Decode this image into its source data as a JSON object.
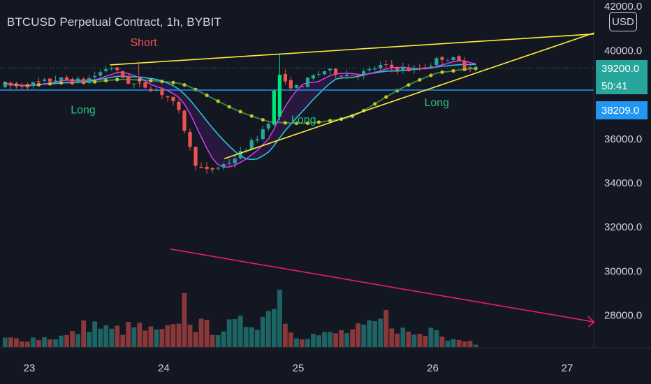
{
  "header": {
    "title": "BTCUSD Perpetual Contract, 1h, BYBIT"
  },
  "scale_button": {
    "label": "USD"
  },
  "price_badges": {
    "last_price": "39200.0",
    "countdown": "50:41",
    "line_price": "38209.0"
  },
  "colors": {
    "background": "#131722",
    "bull": "#26a69a",
    "bear": "#ef5350",
    "bull_bright": "#00e676",
    "trend_line": "#ffeb3b",
    "horizontal_line": "#2196f3",
    "volume_trend": "#e91e63",
    "ma_slow": "#c6c62a",
    "ma_teal": "#26c6da",
    "ma_pink": "#e040fb"
  },
  "chart_data": {
    "type": "candlestick",
    "timeframe": "1h",
    "x_ticks": [
      "23",
      "24",
      "25",
      "26",
      "27"
    ],
    "y_ticks": [
      "42000.0",
      "40000.0",
      "36000.0",
      "34000.0",
      "32000.0",
      "30000.0",
      "28000.0"
    ],
    "ylim": [
      26500,
      42000
    ],
    "horizontal_line_price": 38209,
    "last_price": 39200,
    "signals": [
      {
        "label": "Long",
        "kind": "long",
        "day": 23.4,
        "price": 37150
      },
      {
        "label": "Short",
        "kind": "short",
        "day": 23.85,
        "price": 40200
      },
      {
        "label": "Long",
        "kind": "long",
        "day": 25.04,
        "price": 36700
      },
      {
        "label": "Long",
        "kind": "long",
        "day": 26.03,
        "price": 37480
      }
    ],
    "trend_lines": [
      {
        "from": [
          23.6,
          39350
        ],
        "to": [
          27.2,
          40750
        ]
      },
      {
        "from": [
          24.45,
          35100
        ],
        "to": [
          27.2,
          40800
        ]
      }
    ],
    "volume_trend_line": {
      "from": [
        24.05,
        31000
      ],
      "to": [
        27.2,
        27700
      ]
    },
    "anchors": {
      "close": [
        [
          22.9,
          38400
        ],
        [
          23.05,
          38500
        ],
        [
          23.2,
          38700
        ],
        [
          23.4,
          38600
        ],
        [
          23.5,
          38900
        ],
        [
          23.6,
          39300
        ],
        [
          23.75,
          38500
        ],
        [
          23.85,
          38400
        ],
        [
          23.95,
          38200
        ],
        [
          24.05,
          37800
        ],
        [
          24.12,
          37100
        ],
        [
          24.18,
          35900
        ],
        [
          24.22,
          35000
        ],
        [
          24.3,
          34500
        ],
        [
          24.4,
          34700
        ],
        [
          24.5,
          35000
        ],
        [
          24.6,
          35500
        ],
        [
          24.7,
          36100
        ],
        [
          24.8,
          37000
        ],
        [
          24.85,
          39800
        ],
        [
          24.9,
          38500
        ],
        [
          25.0,
          38300
        ],
        [
          25.1,
          38800
        ],
        [
          25.2,
          39100
        ],
        [
          25.35,
          38900
        ],
        [
          25.5,
          39000
        ],
        [
          25.6,
          39300
        ],
        [
          25.75,
          39200
        ],
        [
          25.85,
          39100
        ],
        [
          26.0,
          39400
        ],
        [
          26.05,
          39700
        ],
        [
          26.15,
          39600
        ],
        [
          26.25,
          39300
        ],
        [
          26.35,
          39200
        ]
      ],
      "volume": [
        [
          22.9,
          0.4
        ],
        [
          23.1,
          0.45
        ],
        [
          23.3,
          0.55
        ],
        [
          23.45,
          1.2
        ],
        [
          23.6,
          0.8
        ],
        [
          23.8,
          1.0
        ],
        [
          23.95,
          0.7
        ],
        [
          24.08,
          0.9
        ],
        [
          24.15,
          2.35
        ],
        [
          24.22,
          1.1
        ],
        [
          24.4,
          0.9
        ],
        [
          24.55,
          1.1
        ],
        [
          24.7,
          1.4
        ],
        [
          24.8,
          1.8
        ],
        [
          24.85,
          4.0
        ],
        [
          24.9,
          1.2
        ],
        [
          25.0,
          0.6
        ],
        [
          25.2,
          0.6
        ],
        [
          25.4,
          0.8
        ],
        [
          25.55,
          1.0
        ],
        [
          25.65,
          1.5
        ],
        [
          25.8,
          0.7
        ],
        [
          25.95,
          0.6
        ],
        [
          26.02,
          1.3
        ],
        [
          26.1,
          0.5
        ],
        [
          26.25,
          0.35
        ],
        [
          26.35,
          0.1
        ]
      ]
    }
  }
}
